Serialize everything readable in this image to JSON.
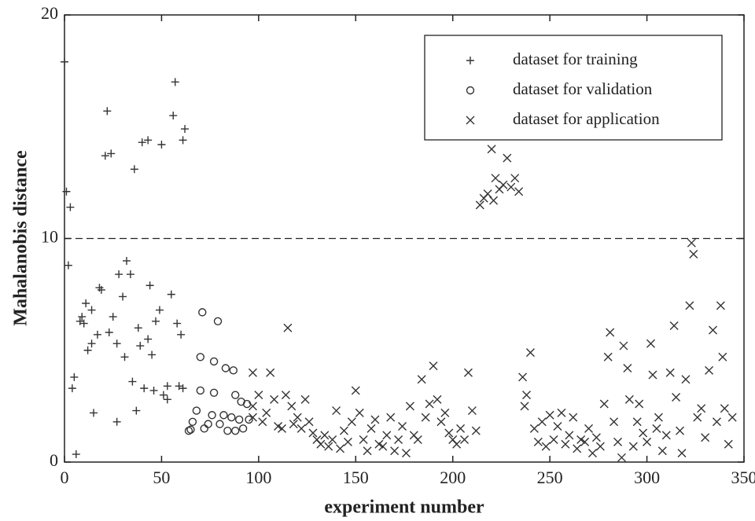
{
  "chart_data": {
    "type": "scatter",
    "x_label": "experiment number",
    "y_label": "Mahalanobis distance",
    "xlim": [
      0,
      350
    ],
    "xticks": [
      0,
      50,
      100,
      150,
      200,
      250,
      300,
      350
    ],
    "ylim": [
      0,
      20
    ],
    "yticks": [
      0,
      10,
      20
    ],
    "hlines": [
      10
    ],
    "legend": "upper right",
    "series": [
      {
        "name": "dataset for training",
        "marker": "plus",
        "color": "#333333",
        "x": [
          0,
          1,
          3,
          2,
          4,
          5,
          6,
          8,
          9,
          10,
          11,
          12,
          14,
          14,
          15,
          17,
          18,
          19,
          21,
          22,
          24,
          23,
          25,
          27,
          27,
          28,
          30,
          31,
          32,
          34,
          36,
          35,
          37,
          38,
          39,
          40,
          43,
          41,
          43,
          44,
          45,
          46,
          47,
          49,
          50,
          51,
          53,
          53,
          55,
          56,
          57,
          58,
          60,
          59,
          61,
          62,
          61
        ],
        "values": [
          17.9,
          12.1,
          11.4,
          8.8,
          3.3,
          3.8,
          0.35,
          6.3,
          6.5,
          6.2,
          7.1,
          5.0,
          6.8,
          5.3,
          2.2,
          5.7,
          7.8,
          7.7,
          13.7,
          15.7,
          13.8,
          5.8,
          6.5,
          5.3,
          1.8,
          8.4,
          7.4,
          4.7,
          9.0,
          8.4,
          13.1,
          3.6,
          2.3,
          6.0,
          5.2,
          14.3,
          14.4,
          3.3,
          5.5,
          7.9,
          4.8,
          3.2,
          6.3,
          6.8,
          14.2,
          3.0,
          3.4,
          2.8,
          7.5,
          15.5,
          17.0,
          6.2,
          5.7,
          3.4,
          14.4,
          14.9,
          3.3
        ]
      },
      {
        "name": "dataset for validation",
        "marker": "circle",
        "color": "#333333",
        "x": [
          64,
          65,
          66,
          68,
          70,
          71,
          70,
          72,
          74,
          76,
          77,
          77,
          79,
          80,
          82,
          83,
          84,
          86,
          87,
          88,
          88,
          90,
          91,
          92,
          94,
          95
        ],
        "values": [
          1.4,
          1.45,
          1.8,
          2.3,
          3.2,
          6.7,
          4.7,
          1.5,
          1.7,
          2.1,
          4.5,
          3.1,
          6.3,
          1.7,
          2.1,
          4.2,
          1.4,
          2.0,
          4.1,
          3.0,
          1.4,
          1.9,
          2.7,
          1.5,
          2.6,
          1.9
        ]
      },
      {
        "name": "dataset for application",
        "marker": "cross",
        "color": "#333333",
        "x": [
          97,
          97,
          97,
          100,
          102,
          104,
          106,
          108,
          110,
          112,
          114,
          115,
          117,
          118,
          120,
          122,
          124,
          126,
          128,
          130,
          132,
          134,
          136,
          138,
          140,
          142,
          144,
          146,
          148,
          150,
          152,
          154,
          156,
          158,
          160,
          162,
          164,
          166,
          168,
          170,
          172,
          174,
          176,
          178,
          180,
          182,
          184,
          186,
          188,
          190,
          192,
          194,
          196,
          198,
          200,
          202,
          204,
          206,
          208,
          210,
          212,
          214,
          216,
          218,
          220,
          221,
          222,
          224,
          226,
          228,
          230,
          232,
          234,
          236,
          237,
          238,
          240,
          242,
          244,
          246,
          248,
          250,
          252,
          254,
          256,
          258,
          260,
          262,
          264,
          266,
          268,
          270,
          272,
          274,
          276,
          278,
          280,
          281,
          283,
          285,
          287,
          288,
          290,
          291,
          293,
          295,
          296,
          298,
          300,
          302,
          303,
          305,
          306,
          308,
          310,
          312,
          314,
          315,
          317,
          318,
          320,
          322,
          323,
          324,
          326,
          328,
          330,
          332,
          334,
          336,
          338,
          339,
          340,
          342,
          344
        ],
        "values": [
          4.0,
          2.5,
          2.0,
          3.0,
          1.8,
          2.2,
          4.0,
          2.8,
          1.6,
          1.5,
          3.0,
          6.0,
          2.5,
          1.7,
          2.0,
          1.5,
          2.8,
          1.8,
          1.3,
          1.0,
          0.8,
          1.2,
          0.7,
          1.0,
          2.3,
          0.6,
          1.4,
          0.9,
          1.8,
          3.2,
          2.2,
          1.0,
          0.5,
          1.5,
          1.9,
          0.8,
          0.7,
          1.2,
          2.0,
          0.5,
          1.0,
          1.6,
          0.4,
          2.5,
          1.2,
          1.0,
          3.7,
          2.0,
          2.6,
          4.3,
          2.8,
          1.8,
          2.2,
          1.3,
          1.0,
          0.8,
          1.5,
          1.0,
          4.0,
          2.3,
          1.4,
          11.5,
          11.8,
          12.0,
          14.0,
          11.7,
          12.7,
          12.2,
          12.4,
          13.6,
          12.3,
          12.7,
          12.1,
          3.8,
          2.5,
          3.0,
          4.9,
          1.5,
          0.9,
          1.8,
          0.7,
          2.1,
          1.0,
          1.6,
          2.2,
          0.8,
          1.2,
          2.0,
          0.6,
          1.0,
          0.9,
          1.5,
          0.4,
          1.1,
          0.7,
          2.6,
          4.7,
          5.8,
          1.8,
          0.9,
          0.2,
          5.2,
          4.2,
          2.8,
          0.7,
          1.8,
          2.6,
          1.3,
          0.9,
          5.3,
          3.9,
          1.5,
          2.0,
          0.5,
          1.2,
          4.0,
          6.1,
          2.9,
          1.4,
          0.4,
          3.7,
          7.0,
          9.8,
          9.3,
          2.0,
          2.4,
          1.1,
          4.1,
          5.9,
          1.8,
          7.0,
          4.7,
          2.4,
          0.8,
          2.0
        ]
      }
    ]
  }
}
